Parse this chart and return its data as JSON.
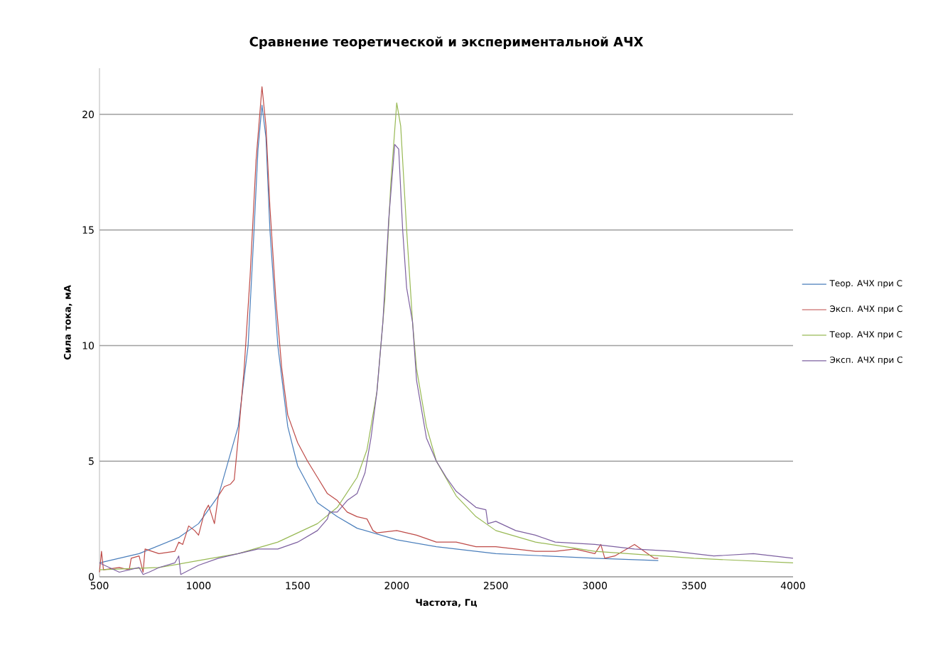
{
  "chart_data": {
    "type": "line",
    "title": "Сравнение теоретической и экспериментальной АЧХ",
    "xlabel": "Частота, Гц",
    "ylabel": "Сила тока, мА",
    "xlim": [
      500,
      4000
    ],
    "xticks": [
      500,
      1000,
      1500,
      2000,
      2500,
      3000,
      3500,
      4000
    ],
    "ylim": [
      0,
      22
    ],
    "yticks": [
      0,
      5,
      10,
      15,
      20
    ],
    "grid": "y",
    "legend": "right",
    "marker": "none",
    "line_style": "solid",
    "series": [
      {
        "name": "Теор. АЧХ при С",
        "color": "#4a7ebb",
        "x": [
          500,
          700,
          900,
          1000,
          1100,
          1200,
          1250,
          1280,
          1300,
          1320,
          1340,
          1360,
          1400,
          1450,
          1500,
          1600,
          1700,
          1800,
          2000,
          2200,
          2500,
          3000,
          3320
        ],
        "values": [
          0.6,
          1.0,
          1.7,
          2.3,
          3.5,
          6.5,
          10,
          15,
          18.5,
          20.4,
          19,
          15,
          10,
          6.5,
          4.8,
          3.2,
          2.6,
          2.1,
          1.6,
          1.3,
          1.0,
          0.8,
          0.7
        ]
      },
      {
        "name": "Эксп. АЧХ при С",
        "color": "#be4b48",
        "x": [
          500,
          510,
          520,
          600,
          650,
          660,
          700,
          720,
          730,
          800,
          880,
          900,
          920,
          950,
          980,
          1000,
          1030,
          1050,
          1080,
          1100,
          1130,
          1160,
          1180,
          1200,
          1230,
          1260,
          1290,
          1320,
          1340,
          1360,
          1390,
          1420,
          1450,
          1500,
          1550,
          1600,
          1650,
          1700,
          1750,
          1800,
          1850,
          1880,
          1900,
          2000,
          2100,
          2200,
          2300,
          2400,
          2500,
          2600,
          2700,
          2800,
          2900,
          3000,
          3030,
          3050,
          3100,
          3200,
          3300,
          3320
        ],
        "values": [
          0.2,
          1.1,
          0.3,
          0.4,
          0.3,
          0.8,
          0.9,
          0.2,
          1.2,
          1.0,
          1.1,
          1.5,
          1.4,
          2.2,
          2.0,
          1.8,
          2.8,
          3.1,
          2.3,
          3.5,
          3.9,
          4.0,
          4.2,
          6.0,
          9,
          13,
          18,
          21.2,
          19.5,
          16,
          12,
          9,
          7,
          5.8,
          5,
          4.3,
          3.6,
          3.3,
          2.8,
          2.6,
          2.5,
          2.0,
          1.9,
          2.0,
          1.8,
          1.5,
          1.5,
          1.3,
          1.3,
          1.2,
          1.1,
          1.1,
          1.2,
          1.0,
          1.4,
          0.8,
          0.9,
          1.4,
          0.8,
          0.8
        ]
      },
      {
        "name": "Теор. АЧХ при С",
        "color": "#98b954",
        "x": [
          500,
          800,
          1000,
          1200,
          1400,
          1600,
          1700,
          1800,
          1850,
          1900,
          1940,
          1970,
          2000,
          2020,
          2050,
          2080,
          2100,
          2150,
          2200,
          2300,
          2400,
          2500,
          2700,
          3000,
          3500,
          4000
        ],
        "values": [
          0.3,
          0.4,
          0.7,
          1.0,
          1.5,
          2.3,
          3.0,
          4.3,
          5.5,
          8,
          12,
          17,
          20.5,
          19.5,
          15,
          11,
          9,
          6.5,
          5,
          3.5,
          2.6,
          2.0,
          1.5,
          1.1,
          0.8,
          0.6
        ]
      },
      {
        "name": "Эксп. АЧХ при С",
        "color": "#7d60a0",
        "x": [
          500,
          550,
          600,
          700,
          720,
          750,
          800,
          880,
          900,
          910,
          1000,
          1100,
          1200,
          1300,
          1400,
          1500,
          1600,
          1650,
          1660,
          1700,
          1750,
          1800,
          1840,
          1870,
          1900,
          1930,
          1960,
          1990,
          2010,
          2030,
          2050,
          2080,
          2100,
          2130,
          2150,
          2200,
          2250,
          2300,
          2400,
          2450,
          2460,
          2500,
          2600,
          2700,
          2800,
          3000,
          3200,
          3400,
          3600,
          3800,
          4000
        ],
        "values": [
          0.6,
          0.4,
          0.2,
          0.4,
          0.1,
          0.2,
          0.4,
          0.6,
          0.9,
          0.1,
          0.5,
          0.8,
          1.0,
          1.2,
          1.2,
          1.5,
          2.0,
          2.5,
          2.8,
          2.8,
          3.3,
          3.6,
          4.5,
          6,
          8,
          11,
          15.5,
          18.7,
          18.5,
          15,
          12.5,
          11,
          8.5,
          7,
          6,
          5,
          4.3,
          3.7,
          3.0,
          2.9,
          2.3,
          2.4,
          2.0,
          1.8,
          1.5,
          1.4,
          1.2,
          1.1,
          0.9,
          1.0,
          0.8
        ]
      }
    ]
  }
}
